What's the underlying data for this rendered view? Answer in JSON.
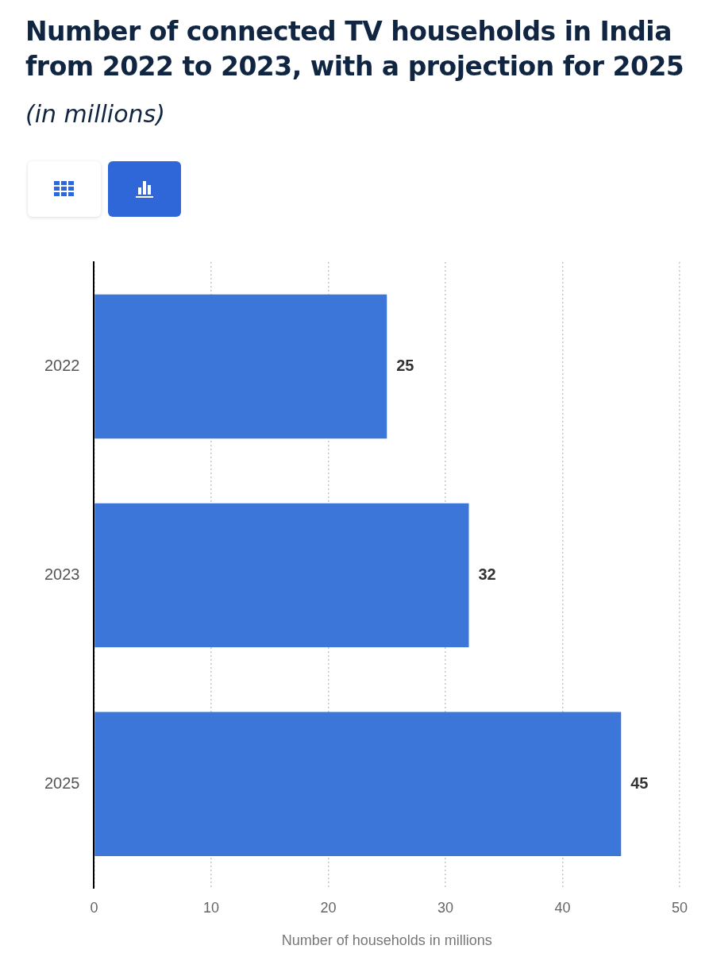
{
  "chart_data": {
    "type": "bar",
    "orientation": "horizontal",
    "title": "Number of connected TV households in India from 2022 to 2023, with a projection for 2025",
    "subtitle": "(in millions)",
    "xlabel": "Number of households in millions",
    "categories": [
      "2022",
      "2023",
      "2025"
    ],
    "values": [
      25,
      32,
      45
    ],
    "color": "#3c76d9",
    "xlim": [
      0,
      50
    ],
    "xticks": [
      0,
      10,
      20,
      30,
      40,
      50
    ],
    "grid": "x",
    "data_labels": true,
    "legend": false
  }
}
